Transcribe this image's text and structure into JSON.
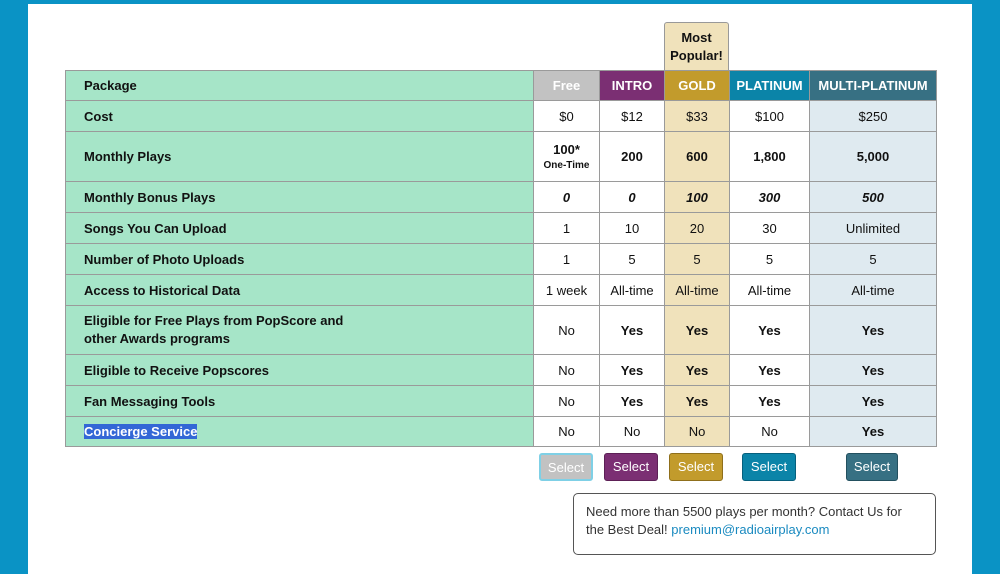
{
  "popular": "Most Popular!",
  "header": [
    "Package",
    "Free",
    "INTRO",
    "GOLD",
    "PLATINUM",
    "MULTI-PLATINUM"
  ],
  "rows": [
    {
      "label": "Cost",
      "cells": [
        "$0",
        "$12",
        "$33",
        "$100",
        "$250"
      ]
    },
    {
      "label": "Monthly Plays",
      "cells": [
        {
          "main": "100*",
          "sub": "One-Time"
        },
        "200",
        "600",
        "1,800",
        "5,000"
      ]
    },
    {
      "label": "Monthly Bonus Plays",
      "cells": [
        "0",
        "0",
        "100",
        "300",
        "500"
      ]
    },
    {
      "label": "Songs You Can Upload",
      "cells": [
        "1",
        "10",
        "20",
        "30",
        "Unlimited"
      ]
    },
    {
      "label": "Number of Photo Uploads",
      "cells": [
        "1",
        "5",
        "5",
        "5",
        "5"
      ]
    },
    {
      "label": "Access to Historical Data",
      "cells": [
        "1 week",
        "All-time",
        "All-time",
        "All-time",
        "All-time"
      ]
    },
    {
      "label": "Eligible for Free Plays from PopScore and other Awards programs",
      "cells": [
        "No",
        "Yes",
        "Yes",
        "Yes",
        "Yes"
      ]
    },
    {
      "label": "Eligible to Receive Popscores",
      "cells": [
        "No",
        "Yes",
        "Yes",
        "Yes",
        "Yes"
      ]
    },
    {
      "label": "Fan Messaging Tools",
      "cells": [
        "No",
        "Yes",
        "Yes",
        "Yes",
        "Yes"
      ]
    },
    {
      "label": "Concierge Service",
      "cells": [
        "No",
        "No",
        "No",
        "No",
        "Yes"
      ]
    }
  ],
  "buttons": [
    "Select",
    "Select",
    "Select",
    "Select",
    "Select"
  ],
  "note": {
    "text": "Need more than 5500 plays per month? Contact Us for the Best Deal!",
    "email": "premium@radioairplay.com"
  }
}
